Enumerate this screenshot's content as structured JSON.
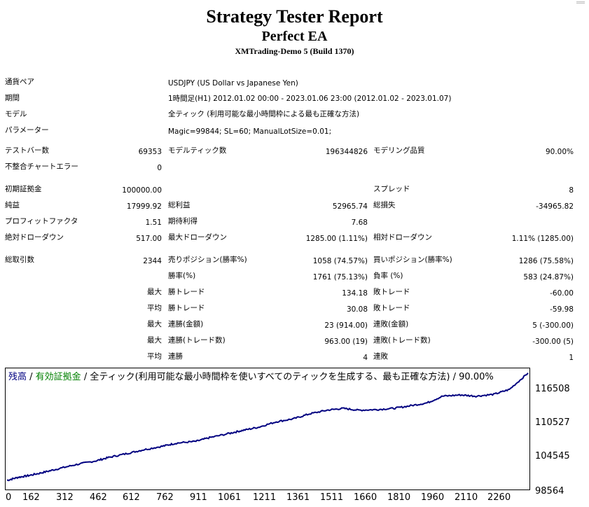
{
  "header": {
    "title": "Strategy Tester Report",
    "ea_name": "Perfect EA",
    "server": "XMTrading-Demo 5 (Build 1370)"
  },
  "info": {
    "symbol_label": "通貨ペア",
    "symbol_value": "USDJPY (US Dollar vs Japanese Yen)",
    "period_label": "期間",
    "period_value": "1時間足(H1) 2012.01.02 00:00 - 2023.01.06 23:00 (2012.01.02 - 2023.01.07)",
    "model_label": "モデル",
    "model_value": "全ティック (利用可能な最小時間枠による最も正確な方法)",
    "params_label": "パラメーター",
    "params_value": "Magic=99844; SL=60; ManualLotSize=0.01;"
  },
  "stats": {
    "bars_label": "テストバー数",
    "bars_value": "69353",
    "ticks_label": "モデルティック数",
    "ticks_value": "196344826",
    "quality_label": "モデリング品質",
    "quality_value": "90.00%",
    "mismatch_label": "不整合チャートエラー",
    "mismatch_value": "0",
    "deposit_label": "初期証拠金",
    "deposit_value": "100000.00",
    "spread_label": "スプレッド",
    "spread_value": "8",
    "net_label": "純益",
    "net_value": "17999.92",
    "gross_profit_label": "総利益",
    "gross_profit_value": "52965.74",
    "gross_loss_label": "総損失",
    "gross_loss_value": "-34965.82",
    "pf_label": "プロフィットファクタ",
    "pf_value": "1.51",
    "expected_label": "期待利得",
    "expected_value": "7.68",
    "abs_dd_label": "絶対ドローダウン",
    "abs_dd_value": "517.00",
    "max_dd_label": "最大ドローダウン",
    "max_dd_value": "1285.00 (1.11%)",
    "rel_dd_label": "相対ドローダウン",
    "rel_dd_value": "1.11% (1285.00)",
    "total_trades_label": "総取引数",
    "total_trades_value": "2344",
    "short_label": "売りポジション(勝率%)",
    "short_value": "1058 (74.57%)",
    "long_label": "買いポジション(勝率%)",
    "long_value": "1286 (75.58%)",
    "win_rate_label": "勝率(%)",
    "win_rate_value": "1761 (75.13%)",
    "loss_rate_label": "負率 (%)",
    "loss_rate_value": "583 (24.87%)",
    "max_prefix": "最大",
    "avg_prefix": "平均",
    "max_win_label": "勝トレード",
    "max_win_value": "134.18",
    "max_loss_label": "敗トレード",
    "max_loss_value": "-60.00",
    "avg_win_label": "勝トレード",
    "avg_win_value": "30.08",
    "avg_loss_label": "敗トレード",
    "avg_loss_value": "-59.98",
    "cons_wins_amt_label": "連勝(金額)",
    "cons_wins_amt_value": "23 (914.00)",
    "cons_losses_amt_label": "連敗(金額)",
    "cons_losses_amt_value": "5 (-300.00)",
    "cons_profit_label": "連勝(トレード数)",
    "cons_profit_value": "963.00 (19)",
    "cons_loss_label": "連敗(トレード数)",
    "cons_loss_value": "-300.00 (5)",
    "avg_cons_wins_label": "連勝",
    "avg_cons_wins_value": "4",
    "avg_cons_losses_label": "連敗",
    "avg_cons_losses_value": "1"
  },
  "chart_legend": {
    "balance": "残高",
    "sep1": " / ",
    "equity": "有効証拠金",
    "sep2": " / ",
    "rest": "全ティック(利用可能な最小時間枠を使いすべてのティックを生成する、最も正確な方法) / 90.00%"
  },
  "colors": {
    "balance_line": "#000080",
    "equity_label": "#008000"
  },
  "chart_data": {
    "type": "line",
    "y_ticks": [
      "116508",
      "110527",
      "104545",
      "98564"
    ],
    "x_ticks": [
      "0",
      "162",
      "312",
      "462",
      "612",
      "762",
      "911",
      "1061",
      "1211",
      "1361",
      "1511",
      "1660",
      "1810",
      "1960",
      "2110",
      "2260"
    ],
    "ylim": [
      98564,
      117500
    ],
    "xlim": [
      0,
      2344
    ],
    "series": [
      {
        "x": [
          0,
          50,
          100,
          162,
          230,
          312,
          400,
          462,
          540,
          612,
          700,
          762,
          850,
          911,
          1000,
          1061,
          1130,
          1211,
          1290,
          1361,
          1440,
          1511,
          1580,
          1660,
          1740,
          1810,
          1890,
          1960,
          2040,
          2110,
          2190,
          2260,
          2344
        ],
        "y": [
          99600,
          100100,
          100400,
          100900,
          101500,
          102200,
          102800,
          103400,
          104000,
          104600,
          105200,
          105700,
          106000,
          106600,
          107300,
          107800,
          108300,
          109200,
          109700,
          110500,
          111100,
          111400,
          111100,
          111200,
          111400,
          111800,
          112300,
          113400,
          113600,
          113400,
          113700,
          114500,
          117200
        ]
      }
    ]
  }
}
